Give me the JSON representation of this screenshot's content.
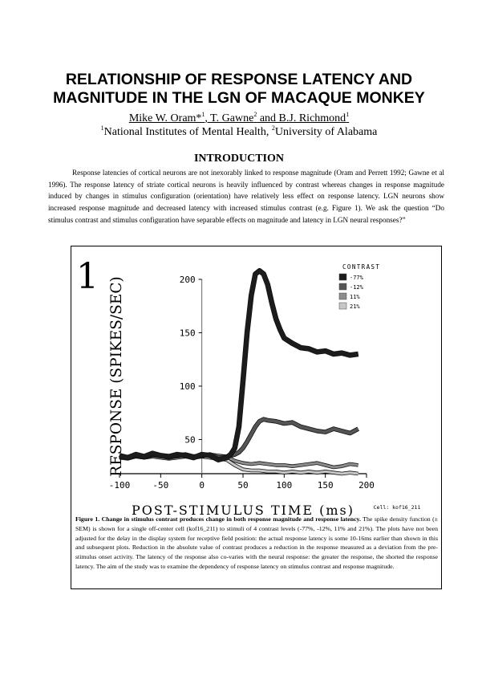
{
  "paper": {
    "title_line1": "RELATIONSHIP OF RESPONSE LATENCY AND",
    "title_line2": "MAGNITUDE IN THE LGN OF MACAQUE MONKEY",
    "authors_a": "Mike W. Oram*",
    "authors_a_sup": "1",
    "authors_b": ", T. Gawne",
    "authors_b_sup": "2",
    "authors_c": " and B.J. Richmond",
    "authors_c_sup": "1",
    "affil_sup1": "1",
    "affil_1": "National Institutes of Mental Health, ",
    "affil_sup2": "2",
    "affil_2": "University of Alabama",
    "section_heading": "INTRODUCTION",
    "intro_text": "Response latencies of cortical neurons are not inexorably linked to response magnitude (Oram and Perrett 1992; Gawne et al 1996). The response latency of striate cortical neurons is heavily influenced by contrast whereas changes in response magnitude induced by changes in stimulus configuration (orientation) have relatively less effect on response latency. LGN neurons show increased response magnitude and decreased latency with increased stimulus contrast (e.g. Figure 1). We ask the question “Do stimulus contrast and stimulus configuration have separable effects on magnitude and latency in LGN neural responses?”"
  },
  "figure": {
    "number": "1",
    "cell_label": "Cell: kof16_211",
    "caption_bold": "Figure 1. Change in stimulus contrast produces change in both response magnitude and response latency.",
    "caption_text": " The spike density function (± SEM) is shown for a single off-center cell (kof16_211) to stimuli of 4 contrast levels (-77%, -12%, 11% and 21%). The plots have not been adjusted for the delay in the display system for receptive field position: the actual response latency is some 10-16ms earlier than shown in this and subsequent plots. Reduction in the absolute value of contrast produces a reduction in the response measured as a deviation from the pre-stimulus onset activity. The latency of the response also co-varies with the neural response: the greater the response, the shorted the response latency. The aim of the study was to examine the dependency of response latency on stimulus contrast and response magnitude."
  },
  "chart_data": {
    "type": "line",
    "xlabel": "POST-STIMULUS TIME (ms)",
    "ylabel": "RESPONSE (SPIKES/SEC)",
    "xlim": [
      -100,
      200
    ],
    "ylim": [
      18,
      215
    ],
    "xticks": [
      -100,
      -50,
      0,
      50,
      100,
      150,
      200
    ],
    "yticks": [
      50,
      100,
      150,
      200
    ],
    "legend_title": "CONTRAST",
    "legend_position": "top-right",
    "grid": false,
    "series": [
      {
        "name": "-77%",
        "color": "#1c1c1c",
        "width": 5,
        "x": [
          -100,
          -90,
          -80,
          -70,
          -60,
          -50,
          -40,
          -30,
          -20,
          -10,
          0,
          10,
          20,
          30,
          35,
          40,
          45,
          50,
          55,
          60,
          65,
          70,
          75,
          80,
          85,
          90,
          95,
          100,
          110,
          120,
          130,
          140,
          150,
          160,
          170,
          180,
          190
        ],
        "y": [
          35,
          33,
          36,
          34,
          37,
          35,
          34,
          36,
          35,
          33,
          36,
          35,
          31,
          33,
          36,
          42,
          62,
          105,
          150,
          185,
          205,
          208,
          205,
          195,
          178,
          163,
          153,
          145,
          140,
          136,
          135,
          132,
          133,
          130,
          131,
          129,
          130
        ]
      },
      {
        "name": "-12%",
        "color": "#555555",
        "width": 4,
        "x": [
          -100,
          -90,
          -80,
          -70,
          -60,
          -50,
          -40,
          -30,
          -20,
          -10,
          0,
          10,
          20,
          30,
          40,
          45,
          50,
          55,
          60,
          65,
          70,
          75,
          80,
          90,
          100,
          110,
          120,
          130,
          140,
          150,
          160,
          170,
          180,
          190
        ],
        "y": [
          34,
          33,
          35,
          34,
          36,
          35,
          33,
          35,
          36,
          34,
          35,
          36,
          33,
          34,
          36,
          38,
          42,
          48,
          55,
          62,
          67,
          69,
          68,
          67,
          65,
          66,
          62,
          60,
          58,
          57,
          60,
          58,
          56,
          60
        ]
      },
      {
        "name": "11%",
        "color": "#8c8c8c",
        "width": 3,
        "x": [
          -100,
          -90,
          -80,
          -70,
          -60,
          -50,
          -40,
          -30,
          -20,
          -10,
          0,
          10,
          20,
          30,
          40,
          50,
          60,
          70,
          80,
          90,
          100,
          110,
          120,
          130,
          140,
          150,
          160,
          170,
          180,
          190
        ],
        "y": [
          33,
          34,
          34,
          33,
          35,
          34,
          33,
          34,
          35,
          33,
          34,
          36,
          35,
          34,
          30,
          28,
          27,
          28,
          27,
          26,
          26,
          25,
          26,
          27,
          28,
          26,
          24,
          25,
          27,
          26
        ]
      },
      {
        "name": "21%",
        "color": "#c8c8c8",
        "width": 3,
        "x": [
          -100,
          -90,
          -80,
          -70,
          -60,
          -50,
          -40,
          -30,
          -20,
          -10,
          0,
          10,
          20,
          30,
          40,
          50,
          60,
          70,
          80,
          90,
          100,
          110,
          120,
          130,
          140,
          150,
          160,
          170,
          180,
          190
        ],
        "y": [
          33,
          32,
          34,
          33,
          34,
          33,
          32,
          33,
          34,
          33,
          34,
          33,
          32,
          31,
          26,
          22,
          21,
          21,
          20,
          20,
          19,
          20,
          19,
          20,
          19,
          20,
          19,
          18,
          19,
          18
        ]
      }
    ]
  }
}
